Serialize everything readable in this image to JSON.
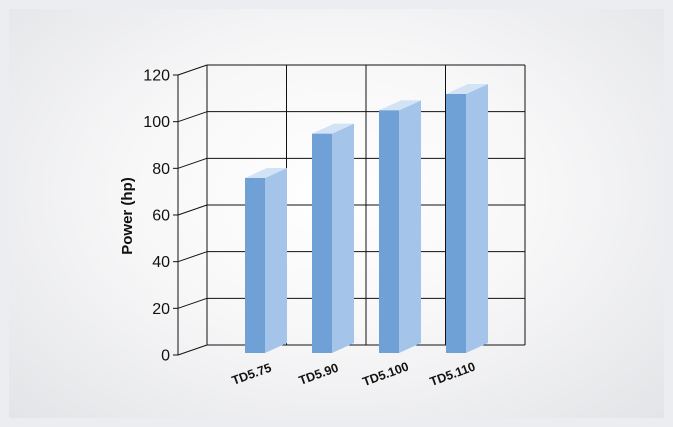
{
  "chart_data": {
    "type": "bar",
    "categories": [
      "TD5.75",
      "TD5.90",
      "TD5.100",
      "TD5.110"
    ],
    "values": [
      75,
      94,
      104,
      111
    ],
    "title": "",
    "xlabel": "",
    "ylabel": "Power (hp)",
    "ylim": [
      0,
      120
    ],
    "yticks": [
      0,
      20,
      40,
      60,
      80,
      100,
      120
    ],
    "grid": true,
    "style": "3d-column",
    "colors": {
      "bar_front": "#6fa0d6",
      "bar_side": "#a5c4ea",
      "bar_top": "#d3e3f6",
      "grid": "#111111",
      "background": "#ebedf0"
    }
  }
}
